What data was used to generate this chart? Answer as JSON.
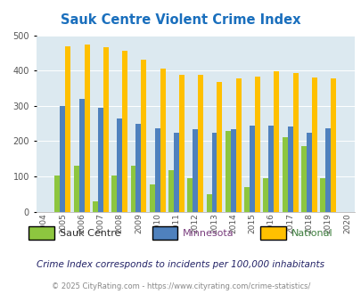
{
  "title": "Sauk Centre Violent Crime Index",
  "subtitle": "Crime Index corresponds to incidents per 100,000 inhabitants",
  "copyright": "© 2025 CityRating.com - https://www.cityrating.com/crime-statistics/",
  "years": [
    2004,
    2005,
    2006,
    2007,
    2008,
    2009,
    2010,
    2011,
    2012,
    2013,
    2014,
    2015,
    2016,
    2017,
    2018,
    2019,
    2020
  ],
  "sauk_centre": [
    null,
    103,
    130,
    30,
    103,
    130,
    78,
    118,
    95,
    50,
    230,
    70,
    95,
    210,
    187,
    95,
    null
  ],
  "minnesota": [
    null,
    300,
    320,
    295,
    265,
    248,
    237,
    224,
    234,
    224,
    234,
    245,
    245,
    241,
    224,
    237,
    null
  ],
  "national": [
    null,
    469,
    474,
    467,
    455,
    432,
    405,
    387,
    387,
    368,
    377,
    383,
    398,
    394,
    380,
    379,
    null
  ],
  "bar_colors": {
    "sauk_centre": "#8dc63f",
    "minnesota": "#4f81bd",
    "national": "#ffc000"
  },
  "ylim": [
    0,
    500
  ],
  "yticks": [
    0,
    100,
    200,
    300,
    400,
    500
  ],
  "plot_bg": "#dce9f0",
  "title_color": "#1a6fbd",
  "subtitle_color": "#222266",
  "copyright_color": "#888888",
  "copyright_link_color": "#3366cc",
  "legend_colors": {
    "sauk_centre": "#333333",
    "minnesota": "#7b3f7f",
    "national": "#3f7f3f"
  },
  "legend_labels": [
    "Sauk Centre",
    "Minnesota",
    "National"
  ]
}
